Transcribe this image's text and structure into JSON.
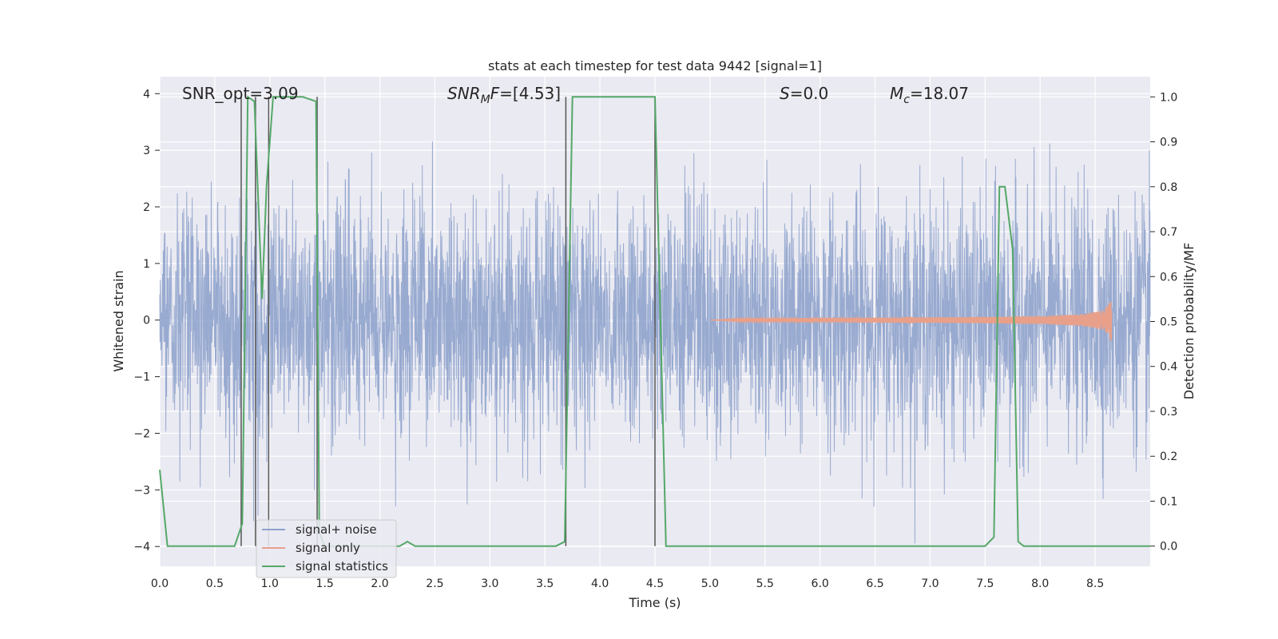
{
  "chart_data": {
    "type": "line",
    "title": "stats at each timestep for test data 9442 [signal=1]",
    "xlabel": "Time (s)",
    "ylabel_left": "Whitened strain",
    "ylabel_right": "Detection probability/MF",
    "xlim": [
      0.0,
      9.0
    ],
    "ylim_left": [
      -4.35,
      4.3
    ],
    "ylim_right": [
      -0.045,
      1.045
    ],
    "x_ticks": [
      "0.0",
      "0.5",
      "1.0",
      "1.5",
      "2.0",
      "2.5",
      "3.0",
      "3.5",
      "4.0",
      "4.5",
      "5.0",
      "5.5",
      "6.0",
      "6.5",
      "7.0",
      "7.5",
      "8.0",
      "8.5"
    ],
    "x_tick_values": [
      0.0,
      0.5,
      1.0,
      1.5,
      2.0,
      2.5,
      3.0,
      3.5,
      4.0,
      4.5,
      5.0,
      5.5,
      6.0,
      6.5,
      7.0,
      7.5,
      8.0,
      8.5
    ],
    "y_left_ticks": [
      "4",
      "3",
      "2",
      "1",
      "0",
      "−1",
      "−2",
      "−3",
      "−4"
    ],
    "y_left_tick_values": [
      4,
      3,
      2,
      1,
      0,
      -1,
      -2,
      -3,
      -4
    ],
    "y_right_ticks": [
      "1.0",
      "0.9",
      "0.8",
      "0.7",
      "0.6",
      "0.5",
      "0.4",
      "0.3",
      "0.2",
      "0.1",
      "0.0"
    ],
    "y_right_tick_values": [
      1.0,
      0.9,
      0.8,
      0.7,
      0.6,
      0.5,
      0.4,
      0.3,
      0.2,
      0.1,
      0.0
    ],
    "grid": true,
    "legend_placement": "lower-left",
    "annotations": {
      "snr_opt": "SNR_opt=3.09",
      "snr_mf": "=[4.53]",
      "s_value": "=0.0",
      "mc_value": "=18.07"
    },
    "series": [
      {
        "name": "signal+ noise",
        "axis": "left",
        "color": "#8fa3cc",
        "kind": "noise",
        "x_range": [
          0.0,
          9.0
        ],
        "amplitude_range": [
          -4.0,
          4.0
        ]
      },
      {
        "name": "signal only",
        "axis": "left",
        "color": "#e8a08a",
        "kind": "chirp",
        "x_start": 5.0,
        "x_end": 8.65,
        "peak_amplitude": 0.65
      },
      {
        "name": "signal statistics",
        "axis": "right",
        "color": "#55a868",
        "x": [
          0.0,
          0.07,
          0.1,
          0.2,
          0.3,
          0.4,
          0.5,
          0.6,
          0.68,
          0.75,
          0.8,
          0.86,
          0.93,
          0.97,
          1.03,
          1.07,
          1.15,
          1.2,
          1.3,
          1.42,
          1.45,
          1.5,
          1.6,
          1.7,
          1.8,
          1.9,
          2.0,
          2.1,
          2.18,
          2.25,
          2.32,
          2.4,
          2.5,
          2.6,
          2.7,
          2.8,
          2.9,
          3.0,
          3.1,
          3.2,
          3.3,
          3.4,
          3.5,
          3.6,
          3.68,
          3.75,
          3.8,
          3.9,
          4.0,
          4.5,
          4.6,
          4.62,
          4.7,
          5.0,
          5.5,
          6.0,
          6.5,
          7.0,
          7.5,
          7.58,
          7.63,
          7.68,
          7.75,
          7.8,
          7.85,
          7.9,
          8.0,
          8.5,
          9.0
        ],
        "y": [
          0.17,
          0.0,
          0.0,
          0.0,
          0.0,
          0.0,
          0.0,
          0.0,
          0.0,
          0.05,
          1.0,
          0.99,
          0.55,
          0.8,
          1.0,
          1.0,
          1.0,
          1.0,
          1.0,
          0.99,
          0.03,
          0.0,
          0.0,
          0.0,
          0.0,
          0.0,
          0.0,
          0.0,
          0.0,
          0.01,
          0.0,
          0.0,
          0.0,
          0.0,
          0.0,
          0.0,
          0.0,
          0.0,
          0.0,
          0.0,
          0.0,
          0.0,
          0.0,
          0.0,
          0.01,
          1.0,
          1.0,
          1.0,
          1.0,
          1.0,
          0.0,
          0.0,
          0.0,
          0.0,
          0.0,
          0.0,
          0.0,
          0.0,
          0.0,
          0.02,
          0.8,
          0.8,
          0.66,
          0.01,
          0.0,
          0.0,
          0.0,
          0.0,
          0.0
        ]
      }
    ],
    "vertical_markers": [
      {
        "x": 0.74,
        "y_from": 0.0,
        "y_to": 1.0
      },
      {
        "x": 0.87,
        "y_from": 0.0,
        "y_to": 1.0
      },
      {
        "x": 0.99,
        "y_from": 0.0,
        "y_to": 1.0
      },
      {
        "x": 1.43,
        "y_from": 0.0,
        "y_to": 1.0
      },
      {
        "x": 3.69,
        "y_from": 0.0,
        "y_to": 1.0
      },
      {
        "x": 4.5,
        "y_from": 0.0,
        "y_to": 1.0
      }
    ]
  },
  "colors": {
    "plot_background": "#eaeaf2",
    "grid": "#ffffff",
    "marker_line": "#555555"
  }
}
